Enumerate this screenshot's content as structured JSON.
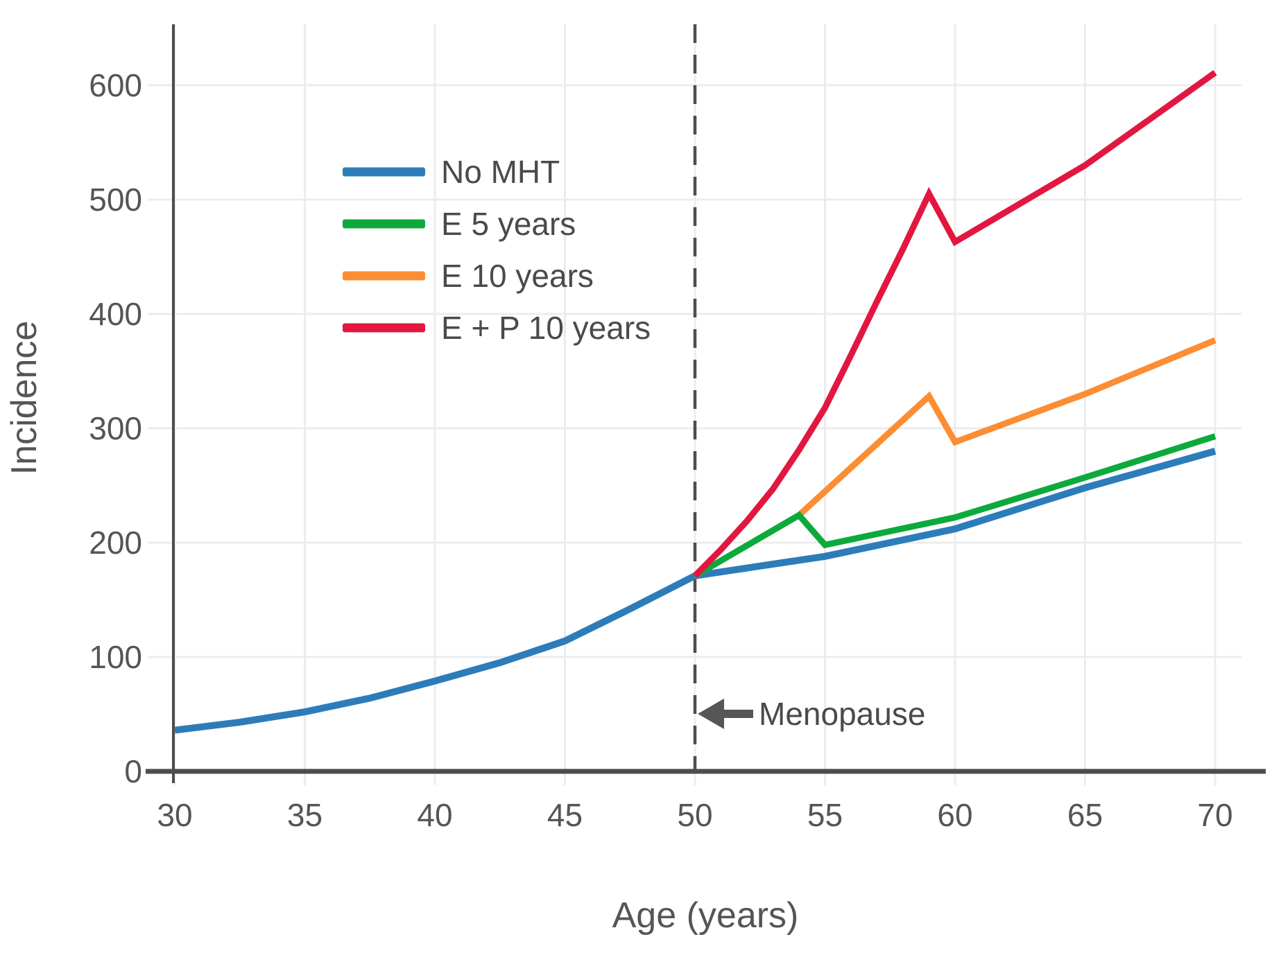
{
  "chart_data": {
    "type": "line",
    "title": "",
    "xlabel": "Age (years)",
    "ylabel": "Incidence",
    "xlim": [
      30,
      70
    ],
    "ylim": [
      0,
      650
    ],
    "x_ticks": [
      30,
      35,
      40,
      45,
      50,
      55,
      60,
      65,
      70
    ],
    "y_ticks": [
      0,
      100,
      200,
      300,
      400,
      500,
      600
    ],
    "grid": true,
    "legend_position": "upper-left",
    "annotation": {
      "text": "Menopause",
      "x": 50,
      "arrow": "left",
      "y_at_label": 50
    },
    "series": [
      {
        "name": "No MHT",
        "color": "#2d7cba",
        "points": [
          [
            30,
            36
          ],
          [
            32.5,
            43
          ],
          [
            35,
            52
          ],
          [
            37.5,
            64
          ],
          [
            40,
            79
          ],
          [
            42.5,
            95
          ],
          [
            45,
            114
          ],
          [
            47.5,
            142
          ],
          [
            50,
            171
          ],
          [
            55,
            188
          ],
          [
            60,
            212
          ],
          [
            65,
            248
          ],
          [
            70,
            280
          ]
        ]
      },
      {
        "name": "E 5 years",
        "color": "#0caa3c",
        "points": [
          [
            50,
            171
          ],
          [
            54,
            224
          ],
          [
            55,
            198
          ],
          [
            60,
            222
          ],
          [
            65,
            257
          ],
          [
            70,
            293
          ]
        ]
      },
      {
        "name": "E 10 years",
        "color": "#fd8d33",
        "points": [
          [
            50,
            171
          ],
          [
            54,
            224
          ],
          [
            59,
            328
          ],
          [
            60,
            288
          ],
          [
            65,
            330
          ],
          [
            70,
            377
          ]
        ]
      },
      {
        "name": "E + P 10 years",
        "color": "#e2173f",
        "points": [
          [
            50,
            171
          ],
          [
            51,
            194
          ],
          [
            52,
            219
          ],
          [
            53,
            247
          ],
          [
            54,
            281
          ],
          [
            55,
            318
          ],
          [
            56,
            364
          ],
          [
            57,
            411
          ],
          [
            58,
            457
          ],
          [
            59,
            505
          ],
          [
            60,
            463
          ],
          [
            65,
            530
          ],
          [
            70,
            611
          ]
        ]
      }
    ]
  }
}
